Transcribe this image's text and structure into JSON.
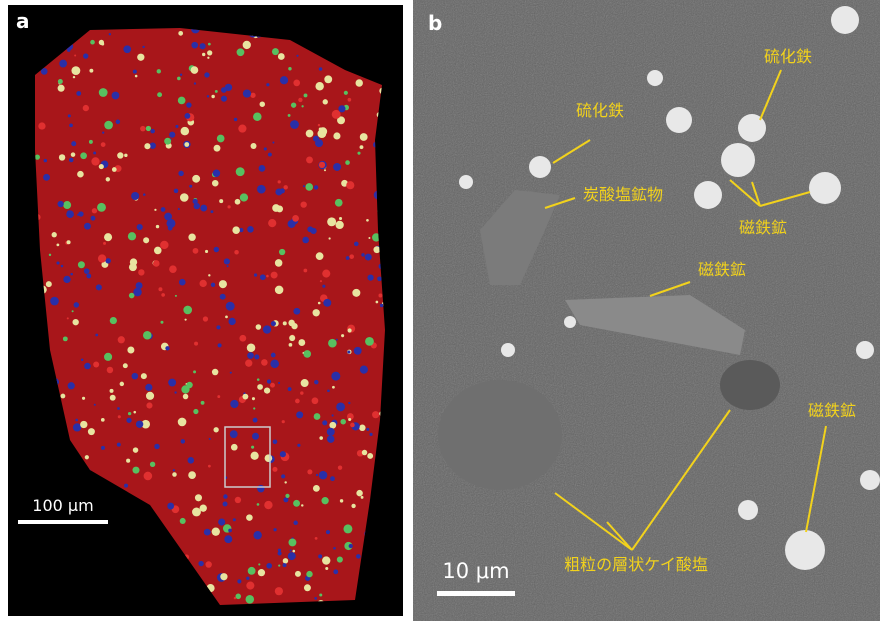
{
  "panels": [
    {
      "label": "a",
      "scale_bar": "100 μm"
    },
    {
      "label": "b",
      "scale_bar": "10 μm",
      "annotations": [
        "硫化鉄",
        "硫化鉄",
        "炭酸塩鉱物",
        "磁鉄鉱",
        "磁鉄鉱",
        "磁鉄鉱",
        "粗粒の層状ケイ酸塩"
      ]
    }
  ]
}
